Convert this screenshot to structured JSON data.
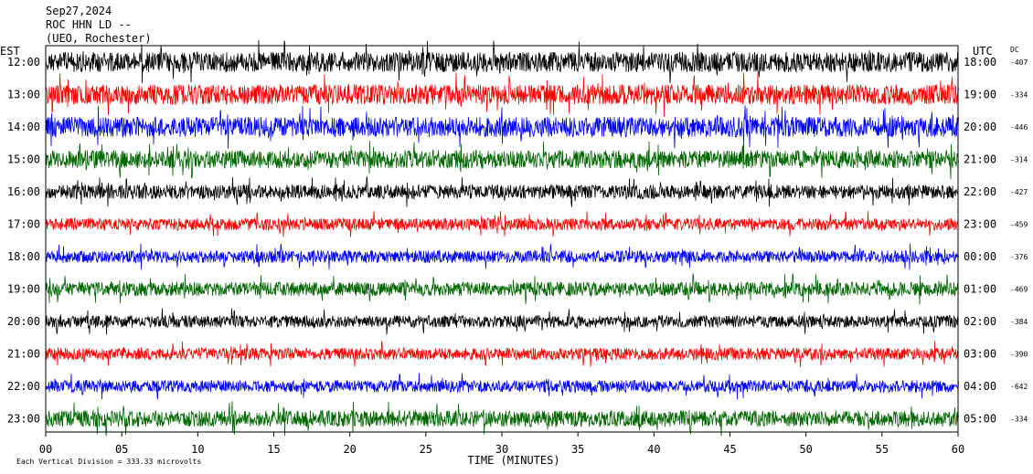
{
  "header": {
    "date": "Sep27,2024",
    "station": "ROC HHN LD --",
    "location": "(UEO, Rochester)"
  },
  "chart_data": {
    "type": "line",
    "title": "",
    "left_axis_label": "EST",
    "right_axis_label": "UTC",
    "dc_label": "DC",
    "xlabel": "TIME (MINUTES)",
    "xlim": [
      0,
      60
    ],
    "x_ticks": [
      "00",
      "05",
      "10",
      "15",
      "20",
      "25",
      "30",
      "35",
      "40",
      "45",
      "50",
      "55",
      "60"
    ],
    "footer": "Each Vertical Division =  333.33 microvolts",
    "trace_colors": [
      "#000000",
      "#ff0000",
      "#0000ff",
      "#006600"
    ],
    "rows": [
      {
        "est": "12:00",
        "utc": "18:00",
        "dc": "-407",
        "color": "#000000",
        "amp": 1.0
      },
      {
        "est": "13:00",
        "utc": "19:00",
        "dc": "-334",
        "color": "#ff0000",
        "amp": 1.0
      },
      {
        "est": "14:00",
        "utc": "20:00",
        "dc": "-446",
        "color": "#0000ff",
        "amp": 1.0
      },
      {
        "est": "15:00",
        "utc": "21:00",
        "dc": "-314",
        "color": "#006600",
        "amp": 0.9
      },
      {
        "est": "16:00",
        "utc": "22:00",
        "dc": "-427",
        "color": "#000000",
        "amp": 0.7
      },
      {
        "est": "17:00",
        "utc": "23:00",
        "dc": "-459",
        "color": "#ff0000",
        "amp": 0.6
      },
      {
        "est": "18:00",
        "utc": "00:00",
        "dc": "-376",
        "color": "#0000ff",
        "amp": 0.6
      },
      {
        "est": "19:00",
        "utc": "01:00",
        "dc": "-469",
        "color": "#006600",
        "amp": 0.7
      },
      {
        "est": "20:00",
        "utc": "02:00",
        "dc": "-384",
        "color": "#000000",
        "amp": 0.6
      },
      {
        "est": "21:00",
        "utc": "03:00",
        "dc": "-390",
        "color": "#ff0000",
        "amp": 0.6
      },
      {
        "est": "22:00",
        "utc": "04:00",
        "dc": "-642",
        "color": "#0000ff",
        "amp": 0.6
      },
      {
        "est": "23:00",
        "utc": "05:00",
        "dc": "-334",
        "color": "#006600",
        "amp": 0.8
      }
    ]
  }
}
